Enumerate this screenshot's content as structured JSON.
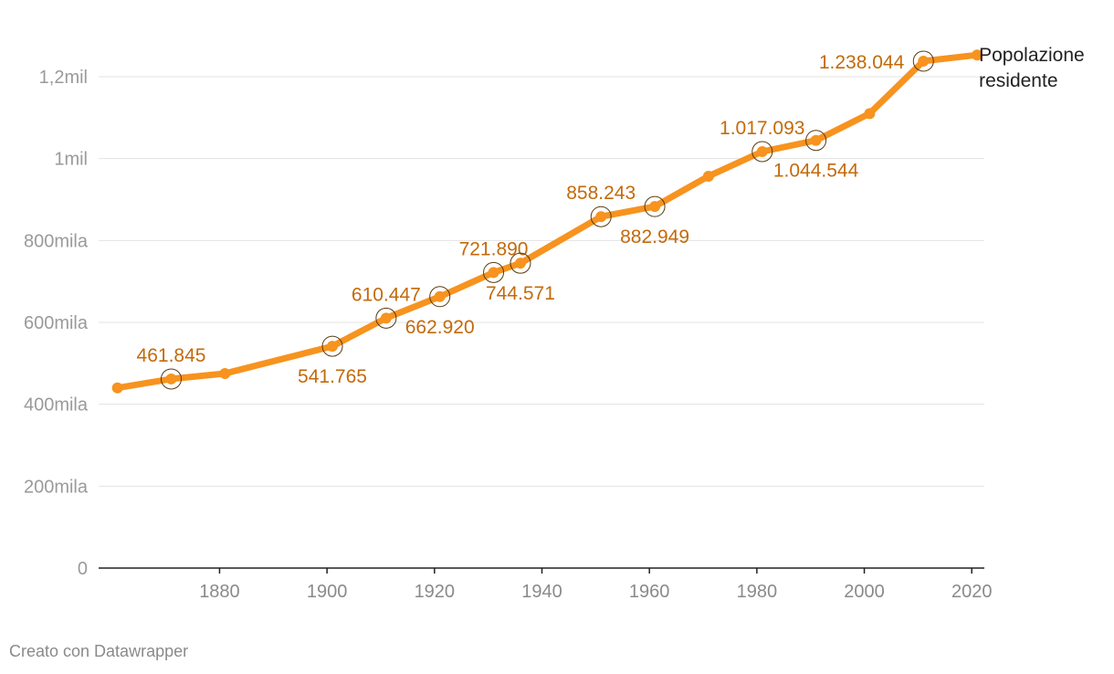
{
  "chart_data": {
    "type": "line",
    "x": [
      1861,
      1871,
      1881,
      1901,
      1911,
      1921,
      1931,
      1936,
      1951,
      1961,
      1971,
      1981,
      1991,
      2001,
      2011,
      2021
    ],
    "series": [
      {
        "name": "Popolazione residente",
        "label_lines": [
          "Popolazione",
          "residente"
        ],
        "color": "#f7931e",
        "values": [
          440000,
          461845,
          475000,
          541765,
          610447,
          662920,
          721890,
          744571,
          858243,
          882949,
          957000,
          1017093,
          1044544,
          1110000,
          1238044,
          1253000
        ]
      }
    ],
    "highlighted": [
      {
        "x": 1871,
        "label": "461.845",
        "pos": "above"
      },
      {
        "x": 1901,
        "label": "541.765",
        "pos": "below"
      },
      {
        "x": 1911,
        "label": "610.447",
        "pos": "above"
      },
      {
        "x": 1921,
        "label": "662.920",
        "pos": "below"
      },
      {
        "x": 1931,
        "label": "721.890",
        "pos": "above"
      },
      {
        "x": 1936,
        "label": "744.571",
        "pos": "below"
      },
      {
        "x": 1951,
        "label": "858.243",
        "pos": "above"
      },
      {
        "x": 1961,
        "label": "882.949",
        "pos": "below"
      },
      {
        "x": 1981,
        "label": "1.017.093",
        "pos": "above"
      },
      {
        "x": 1991,
        "label": "1.044.544",
        "pos": "below"
      },
      {
        "x": 2011,
        "label": "1.238.044",
        "pos": "left"
      }
    ],
    "y_ticks": [
      {
        "value": 0,
        "label": "0"
      },
      {
        "value": 200000,
        "label": "200mila"
      },
      {
        "value": 400000,
        "label": "400mila"
      },
      {
        "value": 600000,
        "label": "600mila"
      },
      {
        "value": 800000,
        "label": "800mila"
      },
      {
        "value": 1000000,
        "label": "1mil"
      },
      {
        "value": 1200000,
        "label": "1,2mil"
      }
    ],
    "x_ticks": [
      1880,
      1900,
      1920,
      1940,
      1960,
      1980,
      2000,
      2020
    ],
    "xlim": [
      1858,
      2022
    ],
    "ylim": [
      0,
      1200000
    ],
    "grid": true,
    "legend": "inline-right"
  },
  "footer": {
    "credit": "Creato con Datawrapper"
  }
}
